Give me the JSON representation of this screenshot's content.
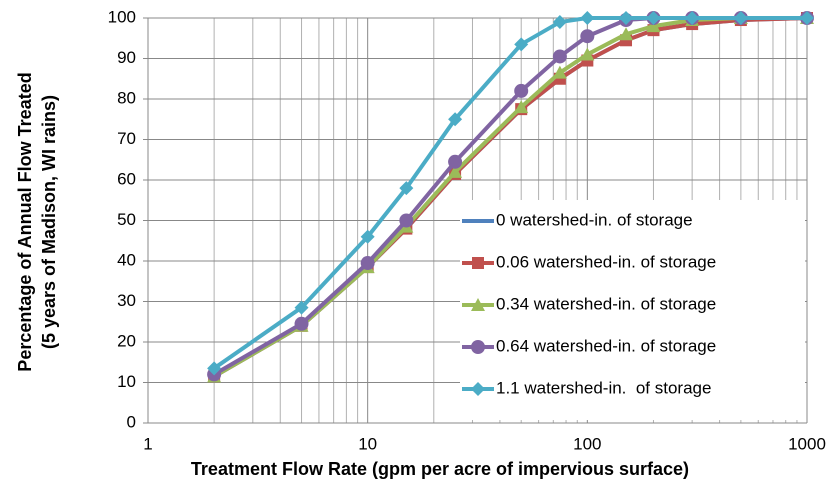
{
  "chart_data": {
    "type": "line",
    "ylabel": [
      "Percentage of Annual Flow Treated",
      "(5 years of Madison, WI rains)"
    ],
    "xlabel": "Treatment Flow Rate (gpm per acre of impervious surface)",
    "x": [
      2,
      5,
      10,
      15,
      25,
      50,
      75,
      100,
      150,
      200,
      300,
      500,
      1000
    ],
    "xscale": "log",
    "xlim": [
      1,
      1000
    ],
    "xticks": [
      1,
      10,
      100,
      1000
    ],
    "ylim": [
      0,
      100
    ],
    "yticks": [
      0,
      10,
      20,
      30,
      40,
      50,
      60,
      70,
      80,
      90,
      100
    ],
    "grid": true,
    "minor_grid": true,
    "legend": "lower right",
    "series": [
      {
        "name": "0 watershed-in. of storage",
        "color": "#4f81bd",
        "marker": "none",
        "values": [
          11.5,
          24,
          38.5,
          48,
          61.5,
          77.5,
          85,
          89.5,
          94.5,
          97,
          98.5,
          99.5,
          100
        ]
      },
      {
        "name": "0.06 watershed-in. of storage",
        "color": "#c0504d",
        "marker": "square",
        "values": [
          11.5,
          24,
          38.5,
          48,
          61.5,
          77.5,
          85,
          89.5,
          94.5,
          97,
          98.5,
          99.5,
          100
        ]
      },
      {
        "name": "0.34 watershed-in. of storage",
        "color": "#9bbb59",
        "marker": "triangle",
        "values": [
          11.5,
          24,
          38.5,
          48.5,
          62,
          78,
          86.5,
          91,
          96,
          98,
          99.5,
          100,
          100
        ]
      },
      {
        "name": "0.64 watershed-in. of storage",
        "color": "#8064a2",
        "marker": "circle",
        "values": [
          12,
          24.5,
          39.5,
          50,
          64.5,
          82,
          90.5,
          95.5,
          99.5,
          100,
          100,
          100,
          100
        ]
      },
      {
        "name": "1.1 watershed-in.  of storage",
        "color": "#4bacc6",
        "marker": "diamond",
        "values": [
          13.5,
          28.5,
          46,
          58,
          75,
          93.5,
          99,
          100,
          100,
          100,
          100,
          100,
          100
        ]
      }
    ]
  }
}
